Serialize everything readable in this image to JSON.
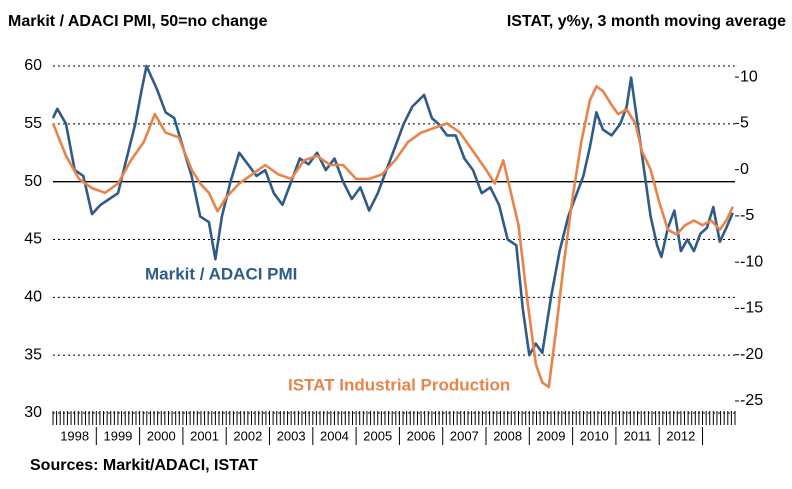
{
  "chart_data": {
    "type": "line",
    "y_label": "Markit / ADACI PMI, 50=no change",
    "y2_label": "ISTAT, y%y, 3 month moving average",
    "source": "Sources: Markit/ADACI, ISTAT",
    "xlim": [
      1998,
      2013.75
    ],
    "xticks": [
      {
        "value": 1998.5,
        "label": "1998"
      },
      {
        "value": 1999.5,
        "label": "1999"
      },
      {
        "value": 2000.5,
        "label": "2000"
      },
      {
        "value": 2001.5,
        "label": "2001"
      },
      {
        "value": 2002.5,
        "label": "2002"
      },
      {
        "value": 2003.5,
        "label": "2003"
      },
      {
        "value": 2004.5,
        "label": "2004"
      },
      {
        "value": 2005.5,
        "label": "2005"
      },
      {
        "value": 2006.5,
        "label": "2006"
      },
      {
        "value": 2007.5,
        "label": "2007"
      },
      {
        "value": 2008.5,
        "label": "2008"
      },
      {
        "value": 2009.5,
        "label": "2009"
      },
      {
        "value": 2010.5,
        "label": "2010"
      },
      {
        "value": 2011.5,
        "label": "2011"
      },
      {
        "value": 2012.5,
        "label": "2012"
      }
    ],
    "ylim": [
      30,
      60
    ],
    "yticks": [
      30,
      35,
      40,
      45,
      50,
      55,
      60
    ],
    "y2lim": [
      -26.3,
      11.2
    ],
    "y2ticks": [
      -25,
      -20,
      -15,
      -10,
      -5,
      0,
      5,
      10
    ],
    "grid": true,
    "reference_line": 50,
    "series": [
      {
        "name": "Markit / ADACI PMI",
        "color": "#2f5b88",
        "axis": "y",
        "x": [
          1998.0,
          1998.1,
          1998.3,
          1998.5,
          1998.7,
          1998.9,
          1999.1,
          1999.3,
          1999.5,
          1999.7,
          1999.9,
          2000.05,
          2000.16,
          2000.4,
          2000.6,
          2000.8,
          2001.0,
          2001.2,
          2001.4,
          2001.6,
          2001.75,
          2001.9,
          2002.1,
          2002.3,
          2002.5,
          2002.7,
          2002.9,
          2003.1,
          2003.3,
          2003.5,
          2003.7,
          2003.9,
          2004.1,
          2004.3,
          2004.5,
          2004.7,
          2004.9,
          2005.1,
          2005.3,
          2005.5,
          2005.7,
          2005.9,
          2006.1,
          2006.3,
          2006.57,
          2006.75,
          2006.9,
          2007.1,
          2007.3,
          2007.5,
          2007.7,
          2007.9,
          2008.1,
          2008.3,
          2008.5,
          2008.7,
          2008.85,
          2009.0,
          2009.15,
          2009.3,
          2009.5,
          2009.7,
          2009.9,
          2010.1,
          2010.25,
          2010.4,
          2010.55,
          2010.7,
          2010.9,
          2011.1,
          2011.25,
          2011.35,
          2011.5,
          2011.65,
          2011.8,
          2011.95,
          2012.05,
          2012.2,
          2012.35,
          2012.5,
          2012.65,
          2012.8,
          2012.95,
          2013.1,
          2013.25,
          2013.4,
          2013.55,
          2013.7
        ],
        "values": [
          55.5,
          56.3,
          55,
          51,
          50.5,
          47.2,
          48,
          48.5,
          49,
          52,
          55,
          58,
          60,
          58,
          56,
          55.5,
          53,
          50.5,
          47,
          46.5,
          43.3,
          47,
          50,
          52.5,
          51.5,
          50.5,
          51,
          49,
          48,
          50,
          52,
          51.5,
          52.5,
          51,
          52,
          50,
          48.5,
          49.5,
          47.5,
          49,
          51,
          53,
          55,
          56.5,
          57.5,
          55.5,
          55,
          54,
          54,
          52,
          51,
          49,
          49.5,
          48,
          45,
          44.5,
          39,
          35,
          36,
          35.2,
          40,
          44,
          47,
          49,
          50.5,
          53,
          56,
          54.5,
          54,
          55,
          56.5,
          59,
          55,
          51,
          47,
          44.5,
          43.5,
          46,
          47.5,
          44,
          45,
          44,
          45.5,
          46,
          47.8,
          44.8,
          46,
          47.3
        ]
      },
      {
        "name": "ISTAT Industrial Production",
        "color": "#e8834a",
        "axis": "y2",
        "x": [
          1998.0,
          1998.3,
          1998.6,
          1998.9,
          1999.2,
          1999.5,
          1999.8,
          2000.1,
          2000.35,
          2000.6,
          2000.9,
          2001.2,
          2001.4,
          2001.6,
          2001.8,
          2002.0,
          2002.3,
          2002.6,
          2002.9,
          2003.2,
          2003.5,
          2003.8,
          2004.1,
          2004.4,
          2004.7,
          2005.0,
          2005.3,
          2005.6,
          2005.9,
          2006.2,
          2006.5,
          2006.8,
          2007.1,
          2007.4,
          2007.7,
          2008.0,
          2008.2,
          2008.4,
          2008.55,
          2008.75,
          2008.95,
          2009.15,
          2009.3,
          2009.45,
          2009.6,
          2009.8,
          2010.0,
          2010.2,
          2010.4,
          2010.55,
          2010.7,
          2010.9,
          2011.05,
          2011.25,
          2011.45,
          2011.6,
          2011.8,
          2012.0,
          2012.2,
          2012.4,
          2012.6,
          2012.8,
          2013.0,
          2013.2,
          2013.4,
          2013.55,
          2013.7
        ],
        "values": [
          5,
          1.5,
          -1,
          -2,
          -2.5,
          -1.5,
          1,
          3,
          6,
          4,
          3.5,
          0,
          -1.5,
          -2.5,
          -4.5,
          -3,
          -1.5,
          -0.5,
          0.5,
          -0.5,
          -1,
          1,
          1.5,
          0.5,
          0.5,
          -1,
          -1,
          -0.5,
          1,
          3,
          4,
          4.5,
          5,
          4,
          2,
          0,
          -1.5,
          1,
          -2,
          -6,
          -14,
          -21,
          -23,
          -23.5,
          -18,
          -10,
          -3,
          3,
          7.5,
          9,
          8.5,
          7,
          6,
          6.5,
          5,
          2,
          0,
          -3.5,
          -6.5,
          -7,
          -6,
          -5.5,
          -6,
          -5.5,
          -6.5,
          -5.5,
          -4
        ]
      }
    ]
  }
}
